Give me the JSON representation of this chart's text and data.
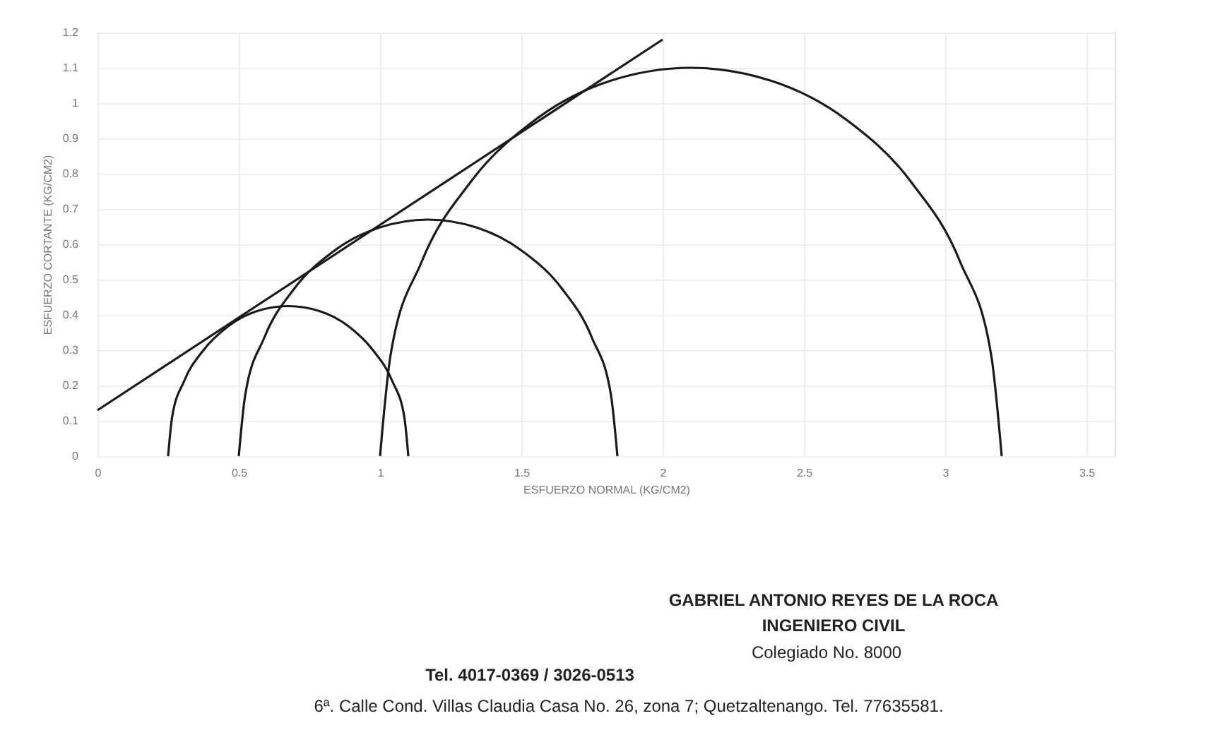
{
  "chart_data": {
    "type": "line",
    "xlabel": "ESFUERZO NORMAL (KG/CM2)",
    "ylabel": "ESFUERZO CORTANTE (KG/CM2)",
    "xlim": [
      0,
      3.6
    ],
    "xticks": [
      0,
      0.5,
      1,
      1.5,
      2,
      2.5,
      3,
      3.5
    ],
    "ylim": [
      0,
      1.2
    ],
    "yticks": [
      0,
      0.1,
      0.2,
      0.3,
      0.4,
      0.5,
      0.6,
      0.7,
      0.8,
      0.9,
      1,
      1.1,
      1.2
    ],
    "grid": true,
    "marker": "none",
    "line_style": "solid",
    "series": [
      {
        "color": "#1a1a1a",
        "x": [
          0.25,
          0.264,
          0.307,
          0.375,
          0.463,
          0.565,
          0.675,
          0.785,
          0.888,
          0.975,
          1.043,
          1.086,
          1.1
        ],
        "values": [
          0,
          0.11,
          0.213,
          0.3,
          0.368,
          0.411,
          0.425,
          0.411,
          0.368,
          0.3,
          0.213,
          0.11,
          0
        ]
      },
      {
        "color": "#1a1a1a",
        "x": [
          0.5,
          0.523,
          0.59,
          0.696,
          0.835,
          0.996,
          1.17,
          1.344,
          1.505,
          1.644,
          1.75,
          1.817,
          1.84
        ],
        "values": [
          0,
          0.174,
          0.335,
          0.474,
          0.58,
          0.647,
          0.67,
          0.647,
          0.58,
          0.474,
          0.335,
          0.174,
          0
        ]
      },
      {
        "color": "#1a1a1a",
        "x": [
          1.0,
          1.037,
          1.147,
          1.322,
          1.55,
          1.815,
          2.1,
          2.385,
          2.65,
          2.878,
          3.053,
          3.163,
          3.2
        ],
        "values": [
          0,
          0.285,
          0.55,
          0.778,
          0.953,
          1.063,
          1.1,
          1.063,
          0.953,
          0.778,
          0.55,
          0.285,
          0
        ]
      },
      {
        "color": "#1a1a1a",
        "x": [
          0,
          2.0
        ],
        "values": [
          0.13,
          1.18
        ]
      }
    ],
    "annotations": [
      "GABRIEL ANTONIO REYES DE LA ROCA",
      "INGENIERO CIVIL",
      "Colegiado No. 8000",
      "Tel. 4017-0369 / 3026-0513",
      "6ª. Calle Cond. Villas Claudia Casa No. 26, zona 7; Quetzaltenango. Tel. 77635581."
    ]
  }
}
